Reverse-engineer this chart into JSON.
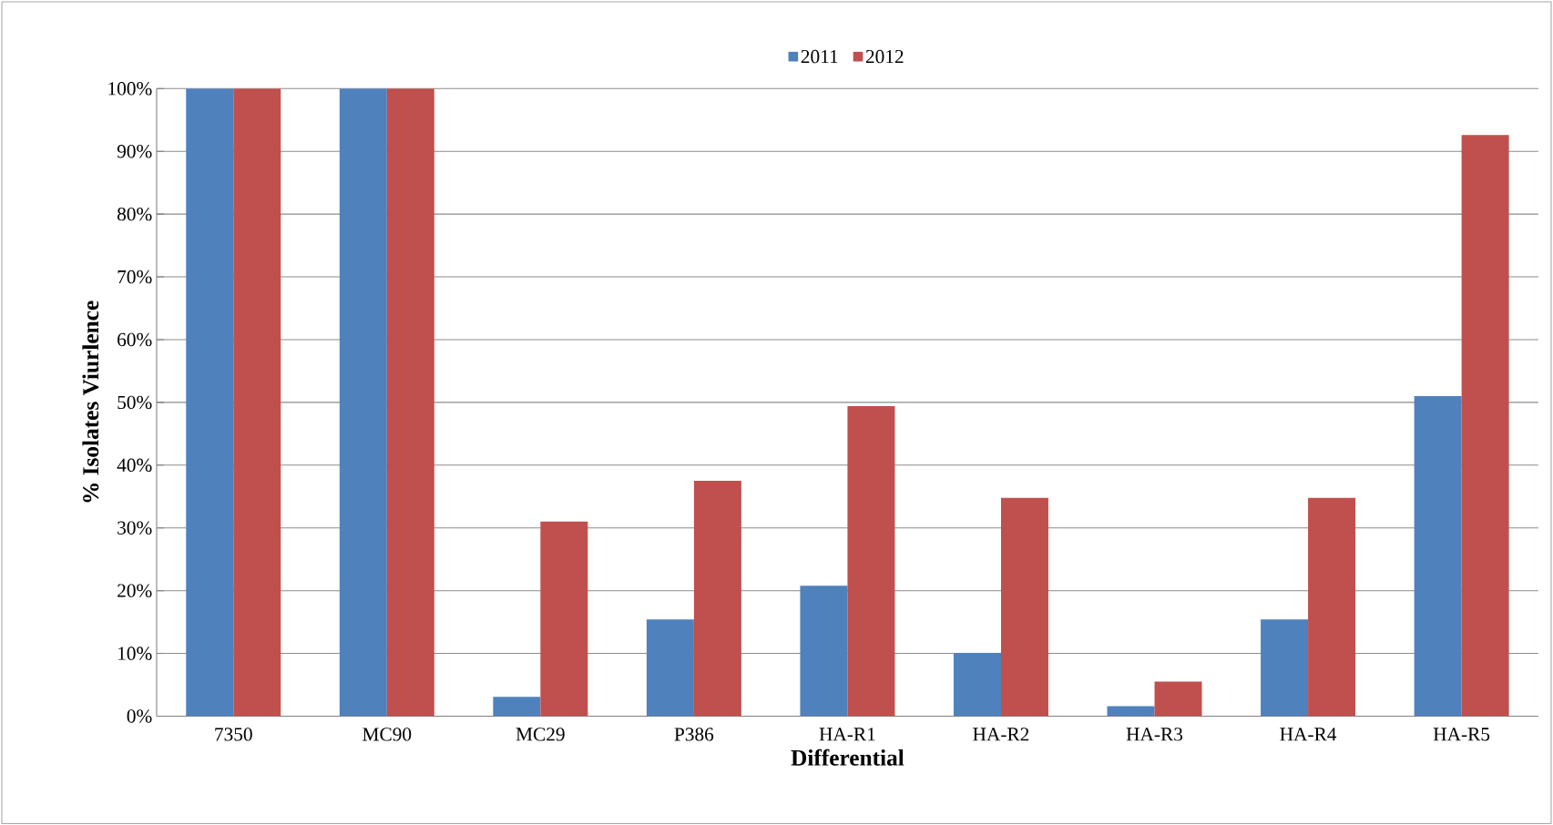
{
  "chart_data": {
    "type": "bar",
    "xlabel": "Differential",
    "ylabel": "% Isolates Viurlence",
    "categories": [
      "7350",
      "MC90",
      "MC29",
      "P386",
      "HA-R1",
      "HA-R2",
      "HA-R3",
      "HA-R4",
      "HA-R5"
    ],
    "series": [
      {
        "name": "2011",
        "color": "#4f81bd",
        "values": [
          100,
          100,
          3.1,
          15.4,
          20.8,
          10.1,
          1.6,
          15.4,
          51.0
        ]
      },
      {
        "name": "2012",
        "color": "#c0504d",
        "values": [
          100,
          100,
          31.0,
          37.5,
          49.4,
          34.8,
          5.5,
          34.8,
          92.6
        ]
      }
    ],
    "ylim": [
      0,
      100
    ],
    "yticks": [
      {
        "value": 0,
        "label": "0%"
      },
      {
        "value": 10,
        "label": "10%"
      },
      {
        "value": 20,
        "label": "20%"
      },
      {
        "value": 30,
        "label": "30%"
      },
      {
        "value": 40,
        "label": "40%"
      },
      {
        "value": 50,
        "label": "50%"
      },
      {
        "value": 60,
        "label": "60%"
      },
      {
        "value": 70,
        "label": "70%"
      },
      {
        "value": 80,
        "label": "80%"
      },
      {
        "value": 90,
        "label": "90%"
      },
      {
        "value": 100,
        "label": "100%"
      }
    ],
    "grid": "y",
    "legend": "top"
  }
}
